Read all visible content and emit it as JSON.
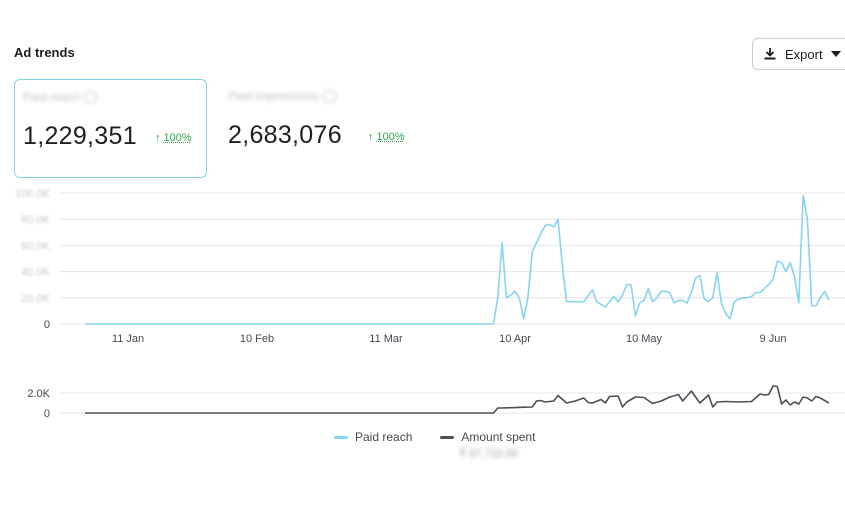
{
  "header": {
    "title": "Ad trends",
    "export_label": "Export"
  },
  "metrics": [
    {
      "label": "Paid reach",
      "value": "1,229,351",
      "delta": "100%"
    },
    {
      "label": "Paid impressions",
      "value": "2,683,076",
      "delta": "100%"
    }
  ],
  "legend": {
    "series1": "Paid reach",
    "series2": "Amount spent",
    "series2_sub": "₹ 97,722.00"
  },
  "colors": {
    "reach": "#86d3f4",
    "spent": "#4b4f56",
    "positive": "#31a24c",
    "accent_border": "#7fd3e6"
  },
  "icons": [
    "download-icon",
    "caret-down-icon",
    "info-icon",
    "arrow-up-icon"
  ],
  "chart_data": [
    {
      "type": "line",
      "title": "",
      "xlabel": "",
      "ylabel": "",
      "x_ticks": [
        "11 Jan",
        "10 Feb",
        "11 Mar",
        "10 Apr",
        "10 May",
        "9 Jun"
      ],
      "y_ticks": [
        "0",
        "20.0K",
        "40.0K",
        "60.0K",
        "80.0K",
        "100.0K"
      ],
      "ylim": [
        0,
        100000
      ],
      "grid": true,
      "series": [
        {
          "name": "Paid reach",
          "points": [
            [
              "2024-01-01",
              0
            ],
            [
              "2024-04-05",
              0
            ],
            [
              "2024-04-06",
              20000
            ],
            [
              "2024-04-07",
              62000
            ],
            [
              "2024-04-08",
              20000
            ],
            [
              "2024-04-09",
              22000
            ],
            [
              "2024-04-10",
              25000
            ],
            [
              "2024-04-11",
              20000
            ],
            [
              "2024-04-12",
              4000
            ],
            [
              "2024-04-13",
              20000
            ],
            [
              "2024-04-14",
              55000
            ],
            [
              "2024-04-15",
              62000
            ],
            [
              "2024-04-16",
              69000
            ],
            [
              "2024-04-17",
              75000
            ],
            [
              "2024-04-18",
              76000
            ],
            [
              "2024-04-19",
              74000
            ],
            [
              "2024-04-20",
              80000
            ],
            [
              "2024-04-21",
              45000
            ],
            [
              "2024-04-22",
              17000
            ],
            [
              "2024-04-24",
              17000
            ],
            [
              "2024-04-26",
              17000
            ],
            [
              "2024-04-28",
              26000
            ],
            [
              "2024-04-29",
              17000
            ],
            [
              "2024-04-30",
              15000
            ],
            [
              "2024-05-01",
              13000
            ],
            [
              "2024-05-02",
              17000
            ],
            [
              "2024-05-03",
              21000
            ],
            [
              "2024-05-04",
              17000
            ],
            [
              "2024-05-05",
              22000
            ],
            [
              "2024-05-06",
              30000
            ],
            [
              "2024-05-07",
              30000
            ],
            [
              "2024-05-08",
              6000
            ],
            [
              "2024-05-09",
              16000
            ],
            [
              "2024-05-10",
              18000
            ],
            [
              "2024-05-11",
              27000
            ],
            [
              "2024-05-12",
              17000
            ],
            [
              "2024-05-13",
              20000
            ],
            [
              "2024-05-14",
              25000
            ],
            [
              "2024-05-15",
              25000
            ],
            [
              "2024-05-16",
              24000
            ],
            [
              "2024-05-17",
              16000
            ],
            [
              "2024-05-18",
              18000
            ],
            [
              "2024-05-19",
              18000
            ],
            [
              "2024-05-20",
              16000
            ],
            [
              "2024-05-21",
              24000
            ],
            [
              "2024-05-22",
              35000
            ],
            [
              "2024-05-23",
              37000
            ],
            [
              "2024-05-24",
              19000
            ],
            [
              "2024-05-25",
              17000
            ],
            [
              "2024-05-26",
              20000
            ],
            [
              "2024-05-27",
              39000
            ],
            [
              "2024-05-28",
              16000
            ],
            [
              "2024-05-29",
              8000
            ],
            [
              "2024-05-30",
              4000
            ],
            [
              "2024-05-31",
              17000
            ],
            [
              "2024-06-01",
              19000
            ],
            [
              "2024-06-02",
              20000
            ],
            [
              "2024-06-03",
              20000
            ],
            [
              "2024-06-04",
              21000
            ],
            [
              "2024-06-05",
              24000
            ],
            [
              "2024-06-06",
              24000
            ],
            [
              "2024-06-07",
              27000
            ],
            [
              "2024-06-08",
              30000
            ],
            [
              "2024-06-09",
              34000
            ],
            [
              "2024-06-10",
              48000
            ],
            [
              "2024-06-11",
              47000
            ],
            [
              "2024-06-12",
              40000
            ],
            [
              "2024-06-13",
              47000
            ],
            [
              "2024-06-14",
              36000
            ],
            [
              "2024-06-15",
              16000
            ],
            [
              "2024-06-16",
              98000
            ],
            [
              "2024-06-17",
              80000
            ],
            [
              "2024-06-18",
              14000
            ],
            [
              "2024-06-19",
              14000
            ],
            [
              "2024-06-20",
              20000
            ],
            [
              "2024-06-21",
              25000
            ],
            [
              "2024-06-22",
              18000
            ]
          ]
        }
      ]
    },
    {
      "type": "line",
      "title": "",
      "y_ticks": [
        "0",
        "2.0K"
      ],
      "ylim": [
        0,
        3000
      ],
      "grid": true,
      "series": [
        {
          "name": "Amount spent",
          "points": [
            [
              "2024-01-01",
              0
            ],
            [
              "2024-04-05",
              0
            ],
            [
              "2024-04-06",
              500
            ],
            [
              "2024-04-07",
              500
            ],
            [
              "2024-04-08",
              520
            ],
            [
              "2024-04-10",
              540
            ],
            [
              "2024-04-12",
              580
            ],
            [
              "2024-04-14",
              600
            ],
            [
              "2024-04-15",
              1200
            ],
            [
              "2024-04-16",
              1250
            ],
            [
              "2024-04-17",
              1100
            ],
            [
              "2024-04-19",
              1200
            ],
            [
              "2024-04-20",
              1750
            ],
            [
              "2024-04-22",
              1000
            ],
            [
              "2024-04-24",
              1200
            ],
            [
              "2024-04-26",
              1500
            ],
            [
              "2024-04-27",
              1050
            ],
            [
              "2024-04-28",
              1000
            ],
            [
              "2024-04-30",
              1350
            ],
            [
              "2024-05-01",
              1000
            ],
            [
              "2024-05-02",
              1650
            ],
            [
              "2024-05-04",
              1700
            ],
            [
              "2024-05-05",
              600
            ],
            [
              "2024-05-06",
              1100
            ],
            [
              "2024-05-08",
              1600
            ],
            [
              "2024-05-10",
              1550
            ],
            [
              "2024-05-12",
              950
            ],
            [
              "2024-05-14",
              1200
            ],
            [
              "2024-05-16",
              1600
            ],
            [
              "2024-05-18",
              1850
            ],
            [
              "2024-05-19",
              1200
            ],
            [
              "2024-05-21",
              2200
            ],
            [
              "2024-05-23",
              1000
            ],
            [
              "2024-05-25",
              1800
            ],
            [
              "2024-05-26",
              600
            ],
            [
              "2024-05-27",
              1100
            ],
            [
              "2024-05-29",
              1150
            ],
            [
              "2024-06-01",
              1100
            ],
            [
              "2024-06-04",
              1150
            ],
            [
              "2024-06-06",
              1900
            ],
            [
              "2024-06-07",
              1800
            ],
            [
              "2024-06-08",
              1850
            ],
            [
              "2024-06-09",
              2700
            ],
            [
              "2024-06-10",
              2650
            ],
            [
              "2024-06-11",
              900
            ],
            [
              "2024-06-12",
              1300
            ],
            [
              "2024-06-13",
              800
            ],
            [
              "2024-06-14",
              1100
            ],
            [
              "2024-06-15",
              900
            ],
            [
              "2024-06-16",
              1600
            ],
            [
              "2024-06-17",
              1500
            ],
            [
              "2024-06-18",
              1200
            ],
            [
              "2024-06-19",
              1650
            ],
            [
              "2024-06-20",
              1500
            ],
            [
              "2024-06-22",
              1000
            ]
          ]
        }
      ]
    }
  ]
}
